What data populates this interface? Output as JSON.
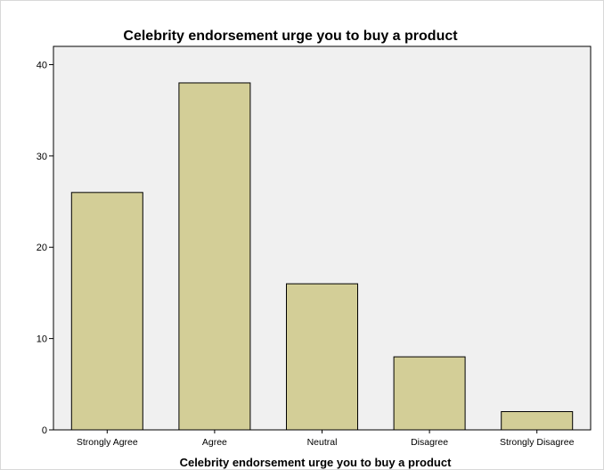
{
  "chart_data": {
    "type": "bar",
    "title": "Celebrity endorsement urge you to buy a product",
    "xlabel": "Celebrity endorsement urge you to buy a product",
    "ylabel": "",
    "categories": [
      "Strongly Agree",
      "Agree",
      "Neutral",
      "Disagree",
      "Strongly Disagree"
    ],
    "values": [
      26,
      38,
      16,
      8,
      2
    ],
    "ylim": [
      0,
      42
    ],
    "yticks": [
      "0",
      "10",
      "20",
      "30",
      "40"
    ],
    "grid": false,
    "legend": "none",
    "colors": {
      "bar_fill": "#D3CE97",
      "bar_stroke": "#000000",
      "plot_background": "#F0F0F0",
      "page_background": "#FFFFFF"
    }
  }
}
